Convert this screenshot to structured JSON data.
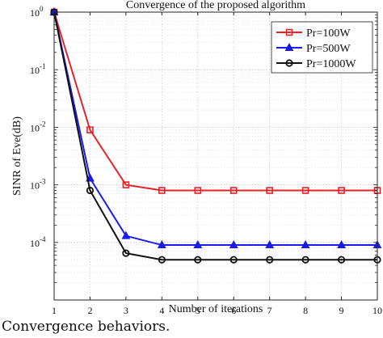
{
  "caption": "Convergence behaviors.",
  "chart_data": {
    "type": "line",
    "title": "Convergence of the proposed algorithm",
    "xlabel": "Number of iterations",
    "ylabel": "SINR of Eve(dB)",
    "xlim": [
      1,
      10
    ],
    "ylim": [
      1e-05,
      1
    ],
    "yscale": "log",
    "grid": true,
    "legend_position": "top-right",
    "x": [
      1,
      2,
      3,
      4,
      5,
      6,
      7,
      8,
      9,
      10
    ],
    "xtick_labels": [
      "1",
      "2",
      "3",
      "4",
      "5",
      "6",
      "7",
      "8",
      "9",
      "10"
    ],
    "ytick_labels": [
      {
        "base": "10",
        "exp": "0"
      },
      {
        "base": "10",
        "exp": "-1"
      },
      {
        "base": "10",
        "exp": "-2"
      },
      {
        "base": "10",
        "exp": "-3"
      },
      {
        "base": "10",
        "exp": "-4"
      }
    ],
    "series": [
      {
        "name": "Pr=100W",
        "color": "#e8202a",
        "marker": "square",
        "values": [
          1,
          0.009,
          0.001,
          0.0008,
          0.0008,
          0.0008,
          0.0008,
          0.0008,
          0.0008,
          0.0008
        ]
      },
      {
        "name": "Pr=500W",
        "color": "#1a1aee",
        "marker": "triangle",
        "values": [
          1,
          0.0013,
          0.00013,
          9e-05,
          9e-05,
          9e-05,
          9e-05,
          9e-05,
          9e-05,
          9e-05
        ]
      },
      {
        "name": "Pr=1000W",
        "color": "#111111",
        "marker": "circle",
        "values": [
          1,
          0.0008,
          6.5e-05,
          5e-05,
          5e-05,
          5e-05,
          5e-05,
          5e-05,
          5e-05,
          5e-05
        ]
      }
    ]
  }
}
